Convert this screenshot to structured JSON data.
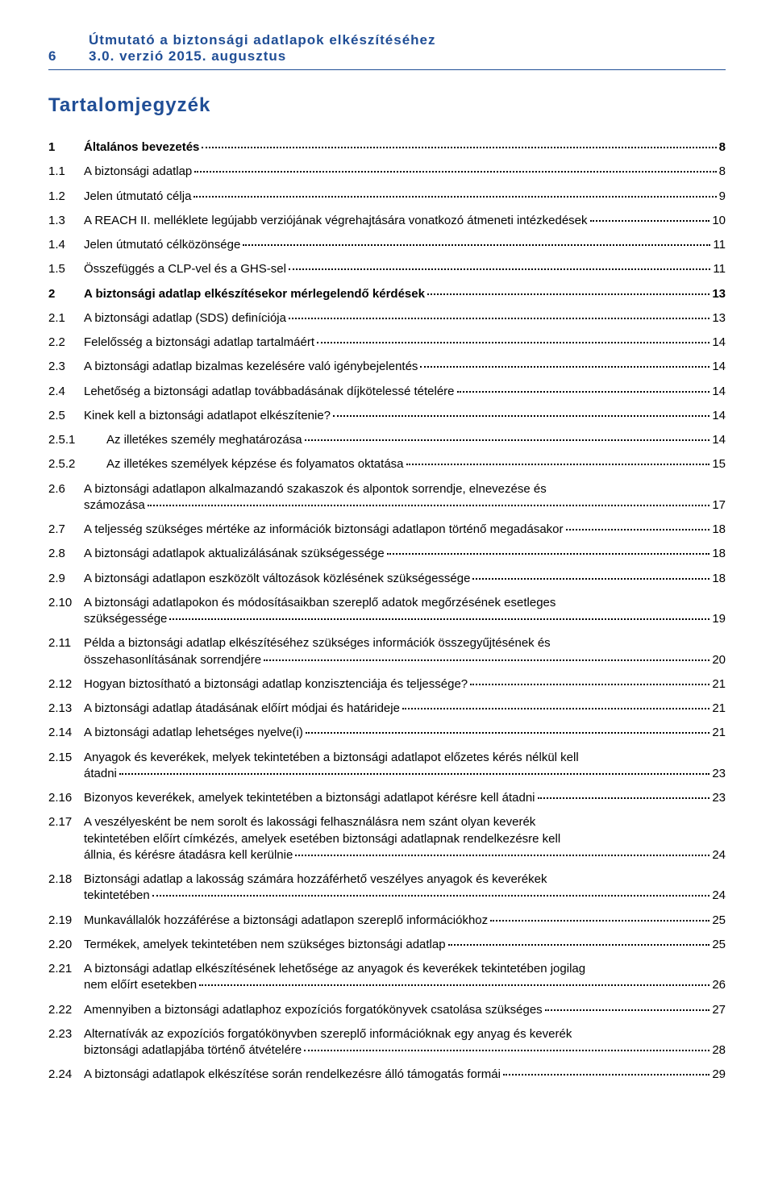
{
  "header": {
    "page_number": "6",
    "title_line_1": "Útmutató a biztonsági adatlapok elkészítéséhez",
    "title_line_2": "3.0. verzió 2015. augusztus"
  },
  "toc_heading": "Tartalomjegyzék",
  "colors": {
    "accent": "#204e96",
    "text": "#000000",
    "background": "#ffffff"
  },
  "toc": [
    {
      "level": 1,
      "num": "1",
      "text": "Általános bevezetés",
      "page": "8"
    },
    {
      "level": 2,
      "num": "1.1",
      "text": "A biztonsági adatlap",
      "page": "8"
    },
    {
      "level": 2,
      "num": "1.2",
      "text": "Jelen útmutató célja",
      "page": "9"
    },
    {
      "level": 2,
      "num": "1.3",
      "text": "A REACH II. melléklete legújabb verziójának végrehajtására vonatkozó átmeneti intézkedések",
      "page": "10"
    },
    {
      "level": 2,
      "num": "1.4",
      "text": "Jelen útmutató célközönsége",
      "page": "11"
    },
    {
      "level": 2,
      "num": "1.5",
      "text": "Összefüggés a CLP-vel és a GHS-sel",
      "page": "11"
    },
    {
      "level": 1,
      "num": "2",
      "text": "A biztonsági adatlap elkészítésekor mérlegelendő kérdések",
      "page": "13"
    },
    {
      "level": 2,
      "num": "2.1",
      "text": "A biztonsági adatlap (SDS) definíciója",
      "page": "13"
    },
    {
      "level": 2,
      "num": "2.2",
      "text": "Felelősség a biztonsági adatlap tartalmáért",
      "page": "14"
    },
    {
      "level": 2,
      "num": "2.3",
      "text": "A biztonsági adatlap bizalmas kezelésére való igénybejelentés",
      "page": "14"
    },
    {
      "level": 2,
      "num": "2.4",
      "text": "Lehetőség a biztonsági adatlap továbbadásának díjkötelessé tételére",
      "page": "14"
    },
    {
      "level": 2,
      "num": "2.5",
      "text": "Kinek kell a biztonsági adatlapot elkészítenie?",
      "page": "14"
    },
    {
      "level": 3,
      "num": "2.5.1",
      "text": "Az illetékes személy meghatározása",
      "page": "14"
    },
    {
      "level": 3,
      "num": "2.5.2",
      "text": "Az illetékes személyek képzése és folyamatos oktatása",
      "page": "15"
    },
    {
      "level": 2,
      "num": "2.6",
      "text_lines": [
        "A biztonsági adatlapon alkalmazandó szakaszok és alpontok sorrendje, elnevezése és",
        "számozása"
      ],
      "page": "17"
    },
    {
      "level": 2,
      "num": "2.7",
      "text": "A teljesség szükséges mértéke az információk biztonsági adatlapon történő megadásakor",
      "page": "18"
    },
    {
      "level": 2,
      "num": "2.8",
      "text": "A biztonsági adatlapok aktualizálásának szükségessége",
      "page": "18"
    },
    {
      "level": 2,
      "num": "2.9",
      "text": "A biztonsági adatlapon eszközölt változások közlésének szükségessége",
      "page": "18"
    },
    {
      "level": 2,
      "num": "2.10",
      "text_lines": [
        "A biztonsági adatlapokon és módosításaikban szereplő adatok megőrzésének esetleges",
        "szükségessége"
      ],
      "page": "19"
    },
    {
      "level": 2,
      "num": "2.11",
      "text_lines": [
        "Példa a biztonsági adatlap elkészítéséhez szükséges információk összegyűjtésének és",
        "összehasonlításának sorrendjére"
      ],
      "page": "20"
    },
    {
      "level": 2,
      "num": "2.12",
      "text": "Hogyan biztosítható a biztonsági adatlap konzisztenciája és teljessége?",
      "page": "21"
    },
    {
      "level": 2,
      "num": "2.13",
      "text": "A biztonsági adatlap átadásának előírt módjai és határideje",
      "page": "21"
    },
    {
      "level": 2,
      "num": "2.14",
      "text": "A biztonsági adatlap lehetséges nyelve(i)",
      "page": "21"
    },
    {
      "level": 2,
      "num": "2.15",
      "text_lines": [
        "Anyagok és keverékek, melyek tekintetében a biztonsági adatlapot előzetes kérés nélkül kell",
        "átadni"
      ],
      "page": "23"
    },
    {
      "level": 2,
      "num": "2.16",
      "text": "Bizonyos keverékek, amelyek tekintetében a biztonsági adatlapot kérésre kell átadni",
      "page": "23"
    },
    {
      "level": 2,
      "num": "2.17",
      "text_lines": [
        "A veszélyesként be nem sorolt és lakossági felhasználásra nem szánt olyan keverék",
        "tekintetében előírt címkézés, amelyek esetében biztonsági adatlapnak rendelkezésre kell",
        "állnia, és kérésre átadásra kell kerülnie"
      ],
      "page": "24"
    },
    {
      "level": 2,
      "num": "2.18",
      "text_lines": [
        "Biztonsági adatlap a lakosság számára hozzáférhető veszélyes anyagok és keverékek",
        "tekintetében"
      ],
      "page": "24"
    },
    {
      "level": 2,
      "num": "2.19",
      "text": "Munkavállalók hozzáférése a biztonsági adatlapon szereplő információkhoz",
      "page": "25"
    },
    {
      "level": 2,
      "num": "2.20",
      "text": "Termékek, amelyek tekintetében nem szükséges biztonsági adatlap",
      "page": "25"
    },
    {
      "level": 2,
      "num": "2.21",
      "text_lines": [
        "A biztonsági adatlap elkészítésének lehetősége az anyagok és keverékek tekintetében jogilag",
        "nem előírt esetekben"
      ],
      "page": "26"
    },
    {
      "level": 2,
      "num": "2.22",
      "text": "Amennyiben a biztonsági adatlaphoz expozíciós forgatókönyvek csatolása szükséges",
      "page": "27"
    },
    {
      "level": 2,
      "num": "2.23",
      "text_lines": [
        "Alternatívák az expozíciós forgatókönyvben szereplő információknak egy anyag és keverék",
        "biztonsági adatlapjába történő átvételére"
      ],
      "page": "28"
    },
    {
      "level": 2,
      "num": "2.24",
      "text": "A biztonsági adatlapok elkészítése során rendelkezésre álló támogatás formái",
      "page": "29"
    }
  ]
}
